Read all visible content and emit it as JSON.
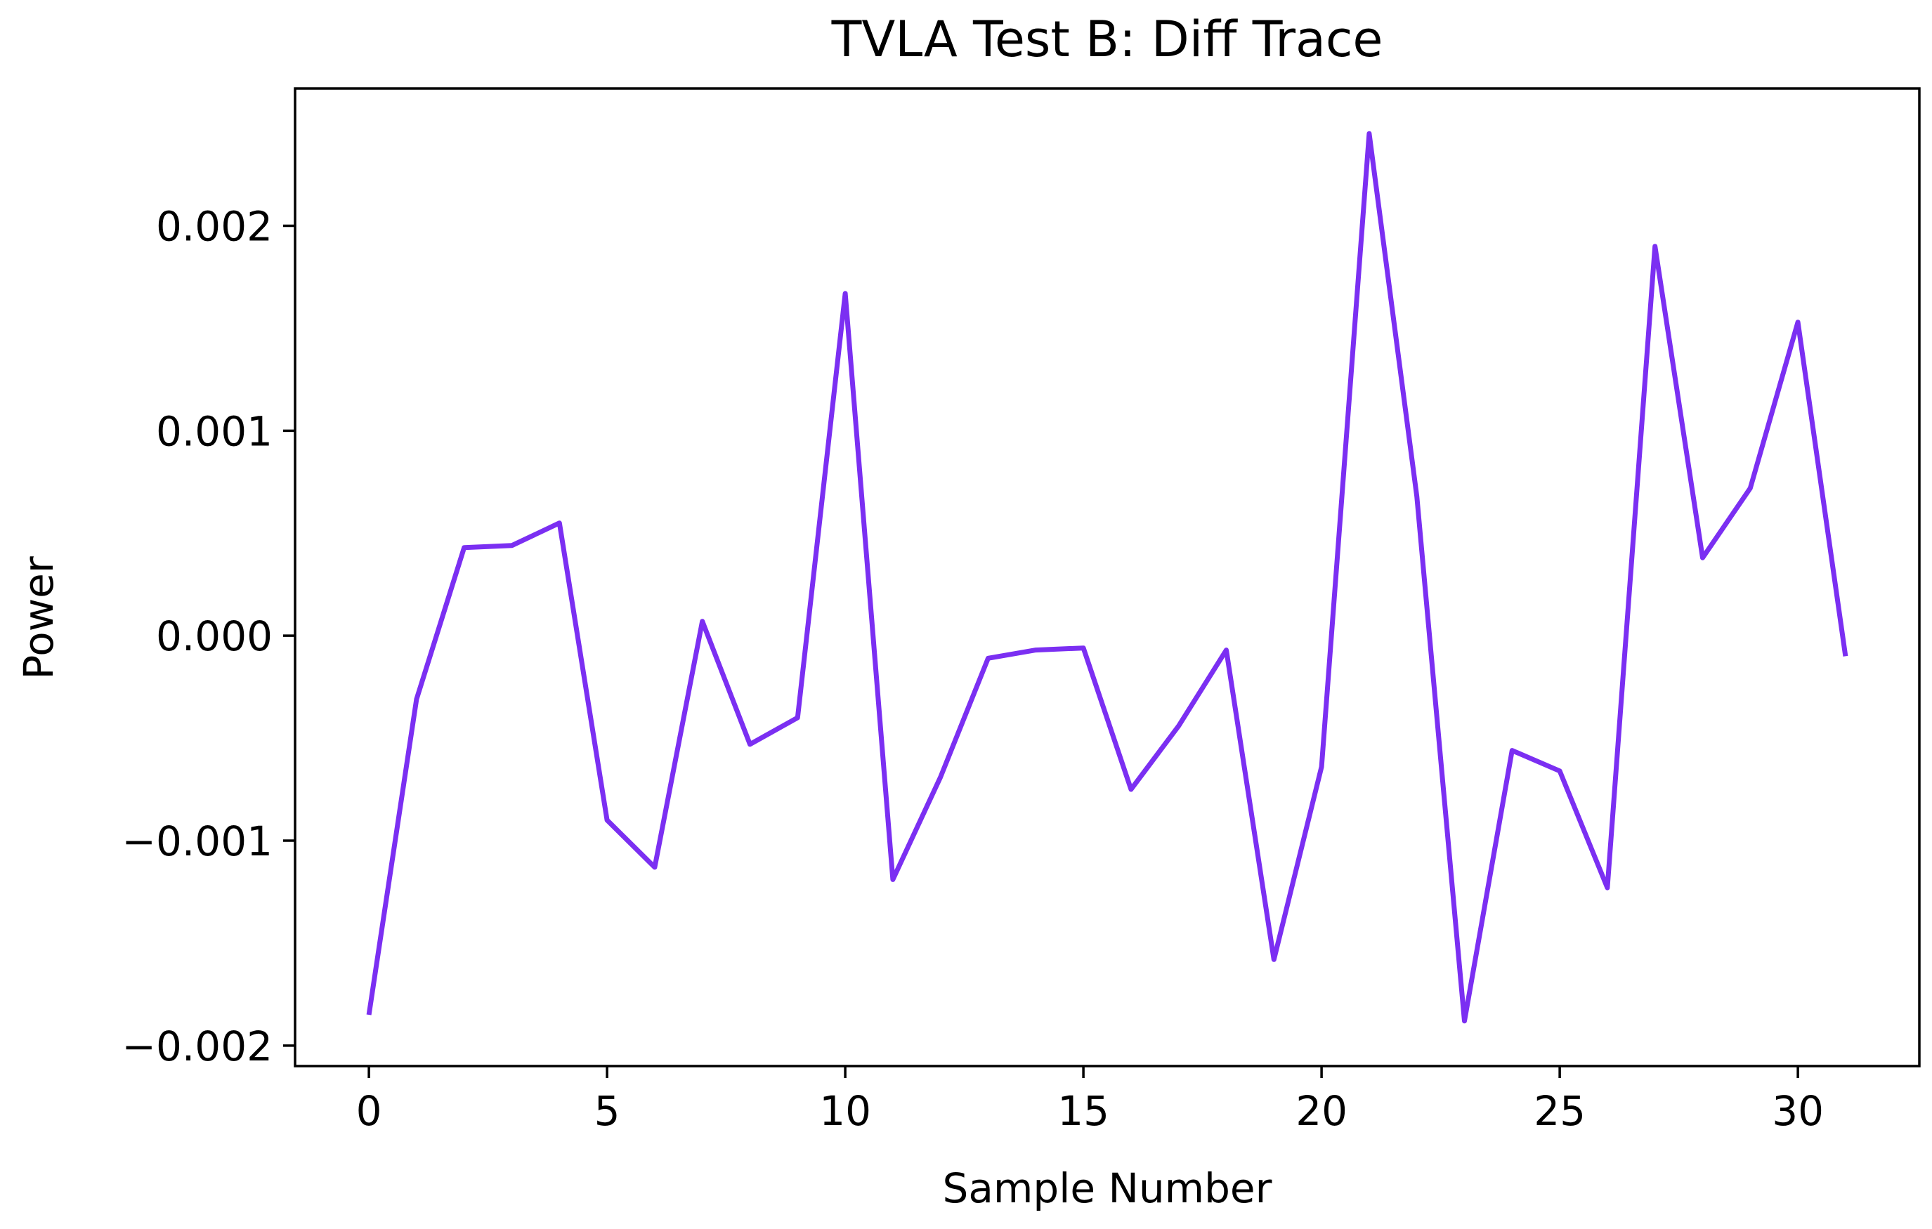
{
  "chart_data": {
    "type": "line",
    "title": "TVLA Test B: Diff Trace",
    "xlabel": "Sample Number",
    "ylabel": "Power",
    "xlim": [
      -1.55,
      32.55
    ],
    "ylim": [
      -0.0021,
      0.00267
    ],
    "x_ticks": [
      0,
      5,
      10,
      15,
      20,
      25,
      30
    ],
    "x_tick_labels": [
      "0",
      "5",
      "10",
      "15",
      "20",
      "25",
      "30"
    ],
    "y_ticks": [
      -0.002,
      -0.001,
      0.0,
      0.001,
      0.002
    ],
    "y_tick_labels": [
      "−0.002",
      "−0.001",
      "0.000",
      "0.001",
      "0.002"
    ],
    "grid": false,
    "series": [
      {
        "color": "#7b2ff2",
        "x": [
          0,
          1,
          2,
          3,
          4,
          5,
          6,
          7,
          8,
          9,
          10,
          11,
          12,
          13,
          14,
          15,
          16,
          17,
          18,
          19,
          20,
          21,
          22,
          23,
          24,
          25,
          26,
          27,
          28,
          29,
          30,
          31
        ],
        "values": [
          -0.00185,
          -0.00031,
          0.00043,
          0.00044,
          0.00055,
          -0.0009,
          -0.00113,
          7e-05,
          -0.00053,
          -0.0004,
          0.00167,
          -0.00119,
          -0.00069,
          -0.00011,
          -7e-05,
          -6e-05,
          -0.00075,
          -0.00044,
          -7e-05,
          -0.00158,
          -0.00064,
          0.00245,
          0.00068,
          -0.00188,
          -0.00056,
          -0.00066,
          -0.00123,
          0.0019,
          0.00038,
          0.00072,
          0.00153,
          -0.0001
        ]
      }
    ]
  }
}
